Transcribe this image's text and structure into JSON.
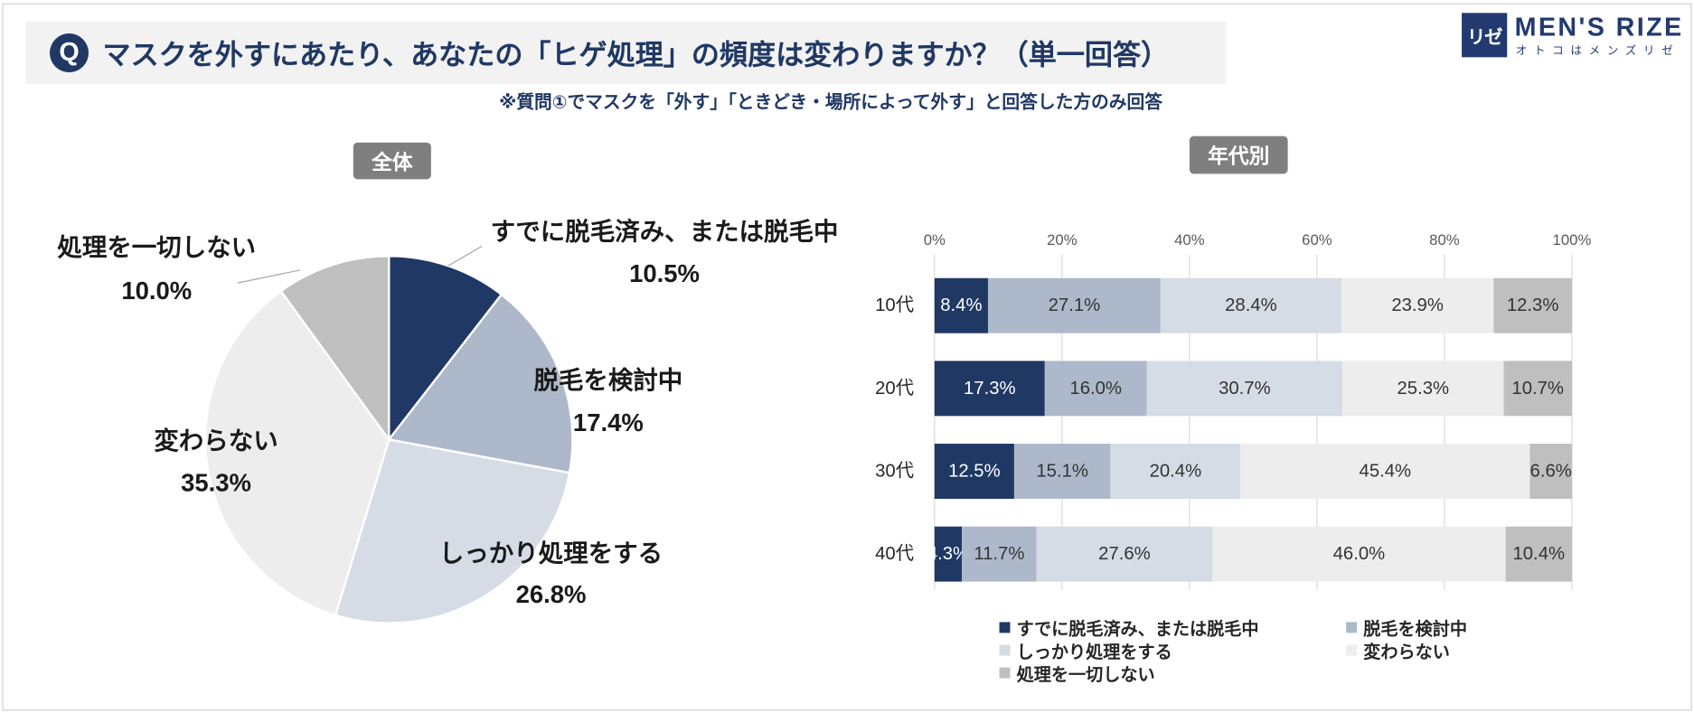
{
  "logo": {
    "mark": "リゼ",
    "name": "MEN'S RIZE",
    "tagline": "オトコはメンズリゼ"
  },
  "header": {
    "badge": "Q",
    "question": "マスクを外すにあたり、あなたの「ヒゲ処理」の頻度は変わりますか？（単一回答）",
    "note": "※質問①でマスクを「外す」「ときどき・場所によって外す」と回答した方のみ回答"
  },
  "colors": {
    "brand": "#223A70",
    "accent": "#203864",
    "title_background": "#F2F2F2",
    "panel_label": "#7F7F7F"
  },
  "chart_data": [
    {
      "type": "pie",
      "title": "全体",
      "categories": [
        "すでに脱毛済み、または脱毛中",
        "脱毛を検討中",
        "しっかり処理をする",
        "変わらない",
        "処理を一切しない"
      ],
      "values": [
        10.5,
        17.4,
        26.8,
        35.3,
        10.0
      ],
      "value_suffix": "%",
      "colors": [
        "#203864",
        "#ADB9CA",
        "#D6DCE5",
        "#EDEDED",
        "#BFBFBF"
      ]
    },
    {
      "type": "bar",
      "orientation": "horizontal",
      "stacked": true,
      "title": "年代別",
      "categories": [
        "10代",
        "20代",
        "30代",
        "40代"
      ],
      "series": [
        {
          "name": "すでに脱毛済み、または脱毛中",
          "values": [
            8.4,
            17.3,
            12.5,
            4.3
          ],
          "color": "#203864",
          "label_color": "#FFFFFF"
        },
        {
          "name": "脱毛を検討中",
          "values": [
            27.1,
            16.0,
            15.1,
            11.7
          ],
          "color": "#ADB9CA",
          "label_color": "#333333"
        },
        {
          "name": "しっかり処理をする",
          "values": [
            28.4,
            30.7,
            20.4,
            27.6
          ],
          "color": "#D6DCE5",
          "label_color": "#333333"
        },
        {
          "name": "変わらない",
          "values": [
            23.9,
            25.3,
            45.4,
            46.0
          ],
          "color": "#EDEDED",
          "label_color": "#333333"
        },
        {
          "name": "処理を一切しない",
          "values": [
            12.3,
            10.7,
            6.6,
            10.4
          ],
          "color": "#BFBFBF",
          "label_color": "#333333"
        }
      ],
      "value_suffix": "%",
      "xlim": [
        0,
        100
      ],
      "xticks": [
        0,
        20,
        40,
        60,
        80,
        100
      ],
      "xtick_labels": [
        "0%",
        "20%",
        "40%",
        "60%",
        "80%",
        "100%"
      ],
      "xaxis_position": "top",
      "grid": true,
      "legend_position": "bottom"
    }
  ]
}
